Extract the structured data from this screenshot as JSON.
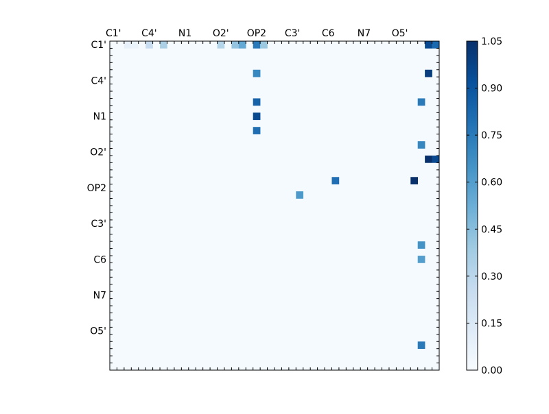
{
  "chart_data": {
    "type": "heatmap",
    "title": "",
    "xlabel": "",
    "ylabel": "",
    "x_tick_labels": [
      "C1'",
      "C4'",
      "N1",
      "O2'",
      "OP2",
      "C3'",
      "C6",
      "N7",
      "O5'"
    ],
    "y_tick_labels": [
      "C1'",
      "C4'",
      "N1",
      "O2'",
      "OP2",
      "C3'",
      "C6",
      "N7",
      "O5'"
    ],
    "matrix_size": 46,
    "upper_triangular": true,
    "colormap": "Blues",
    "colorbar": {
      "vmin": 0.0,
      "vmax": 1.05,
      "ticks": [
        "0.00",
        "0.15",
        "0.30",
        "0.45",
        "0.60",
        "0.75",
        "0.90",
        "1.05"
      ]
    },
    "approx_nonzero_cells": [
      {
        "row": 0,
        "col": 2,
        "value": 0.08
      },
      {
        "row": 0,
        "col": 3,
        "value": 0.06
      },
      {
        "row": 0,
        "col": 5,
        "value": 0.25
      },
      {
        "row": 0,
        "col": 7,
        "value": 0.35
      },
      {
        "row": 0,
        "col": 15,
        "value": 0.32
      },
      {
        "row": 0,
        "col": 17,
        "value": 0.42
      },
      {
        "row": 0,
        "col": 18,
        "value": 0.55
      },
      {
        "row": 0,
        "col": 20,
        "value": 0.75
      },
      {
        "row": 0,
        "col": 21,
        "value": 0.4
      },
      {
        "row": 0,
        "col": 44,
        "value": 0.95
      },
      {
        "row": 0,
        "col": 45,
        "value": 0.82
      },
      {
        "row": 4,
        "col": 20,
        "value": 0.7
      },
      {
        "row": 4,
        "col": 44,
        "value": 1.0
      },
      {
        "row": 8,
        "col": 20,
        "value": 0.85
      },
      {
        "row": 8,
        "col": 43,
        "value": 0.75
      },
      {
        "row": 10,
        "col": 20,
        "value": 0.95
      },
      {
        "row": 12,
        "col": 20,
        "value": 0.8
      },
      {
        "row": 14,
        "col": 43,
        "value": 0.7
      },
      {
        "row": 16,
        "col": 44,
        "value": 1.05
      },
      {
        "row": 16,
        "col": 45,
        "value": 0.95
      },
      {
        "row": 19,
        "col": 31,
        "value": 0.8
      },
      {
        "row": 19,
        "col": 42,
        "value": 1.05
      },
      {
        "row": 21,
        "col": 26,
        "value": 0.62
      },
      {
        "row": 28,
        "col": 43,
        "value": 0.65
      },
      {
        "row": 30,
        "col": 43,
        "value": 0.6
      },
      {
        "row": 42,
        "col": 43,
        "value": 0.75
      }
    ]
  }
}
